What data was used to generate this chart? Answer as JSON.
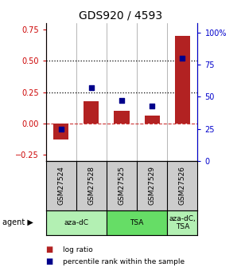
{
  "title": "GDS920 / 4593",
  "samples": [
    "GSM27524",
    "GSM27528",
    "GSM27525",
    "GSM27529",
    "GSM27526"
  ],
  "log_ratio": [
    -0.13,
    0.18,
    0.1,
    0.065,
    0.7
  ],
  "percentile_rank": [
    25,
    57,
    47,
    43,
    80
  ],
  "left_ylim": [
    -0.3,
    0.8
  ],
  "left_yticks": [
    -0.25,
    0.0,
    0.25,
    0.5,
    0.75
  ],
  "right_ylim": [
    0,
    107
  ],
  "right_yticks": [
    0,
    25,
    50,
    75,
    100
  ],
  "right_yticklabels": [
    "0",
    "25",
    "50",
    "75",
    "100%"
  ],
  "hlines": [
    0.25,
    0.5
  ],
  "bar_color": "#b22222",
  "dot_color": "#00008b",
  "zero_line_color": "#cc3333",
  "agent_groups": [
    {
      "label": "aza-dC",
      "start": 0,
      "end": 2,
      "color": "#b3f0b3"
    },
    {
      "label": "TSA",
      "start": 2,
      "end": 4,
      "color": "#66dd66"
    },
    {
      "label": "aza-dC,\nTSA",
      "start": 4,
      "end": 5,
      "color": "#b3f0b3"
    }
  ],
  "tick_label_color_left": "#cc0000",
  "tick_label_color_right": "#0000cc",
  "bar_width": 0.5,
  "label_bg": "#cccccc",
  "fig_width": 3.03,
  "fig_height": 3.45,
  "dpi": 100
}
